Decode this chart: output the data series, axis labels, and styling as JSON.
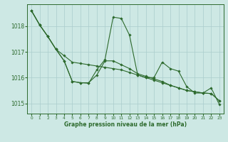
{
  "background_color": "#cde8e4",
  "grid_color": "#aacccc",
  "line_color": "#2d6a2d",
  "xlabel": "Graphe pression niveau de la mer (hPa)",
  "xlim": [
    -0.5,
    23.5
  ],
  "ylim": [
    1014.6,
    1018.85
  ],
  "yticks": [
    1015,
    1016,
    1017,
    1018
  ],
  "xticks": [
    0,
    1,
    2,
    3,
    4,
    5,
    6,
    7,
    8,
    9,
    10,
    11,
    12,
    13,
    14,
    15,
    16,
    17,
    18,
    19,
    20,
    21,
    22,
    23
  ],
  "s1x": [
    0,
    1,
    2,
    3,
    4,
    5,
    6,
    7,
    8,
    9,
    10,
    11,
    12,
    13,
    14,
    15,
    16,
    17,
    18,
    19,
    20,
    21,
    22,
    23
  ],
  "s1y": [
    1018.6,
    1018.05,
    1017.6,
    1017.1,
    1016.85,
    1016.6,
    1016.55,
    1016.5,
    1016.45,
    1016.4,
    1016.35,
    1016.3,
    1016.2,
    1016.1,
    1016.0,
    1015.9,
    1015.8,
    1015.7,
    1015.6,
    1015.5,
    1015.45,
    1015.4,
    1015.38,
    1015.1
  ],
  "s2x": [
    0,
    1,
    2,
    3,
    4,
    5,
    6,
    7,
    8,
    9,
    10,
    11,
    12,
    13,
    14,
    15,
    16,
    17,
    18,
    19,
    20,
    21,
    22,
    23
  ],
  "s2y": [
    1018.6,
    1018.05,
    1017.6,
    1017.1,
    1016.65,
    1015.85,
    1015.8,
    1015.8,
    1016.1,
    1016.65,
    1016.65,
    1016.5,
    1016.35,
    1016.15,
    1016.05,
    1015.95,
    1015.85,
    1015.7,
    1015.6,
    1015.5,
    1015.45,
    1015.4,
    1015.38,
    1015.1
  ],
  "s3x": [
    0,
    1,
    2,
    3,
    4,
    5,
    6,
    7,
    8,
    9,
    10,
    11,
    12,
    13,
    14,
    15,
    16,
    17,
    18,
    19,
    20,
    21,
    22,
    23
  ],
  "s3y": [
    1018.6,
    1018.05,
    1017.6,
    1017.1,
    1016.65,
    1015.85,
    1015.8,
    1015.78,
    1016.3,
    1016.7,
    1018.35,
    1018.3,
    1017.65,
    1016.1,
    1016.0,
    1016.0,
    1016.6,
    1016.35,
    1016.25,
    1015.65,
    1015.4,
    1015.4,
    1015.6,
    1014.95
  ]
}
